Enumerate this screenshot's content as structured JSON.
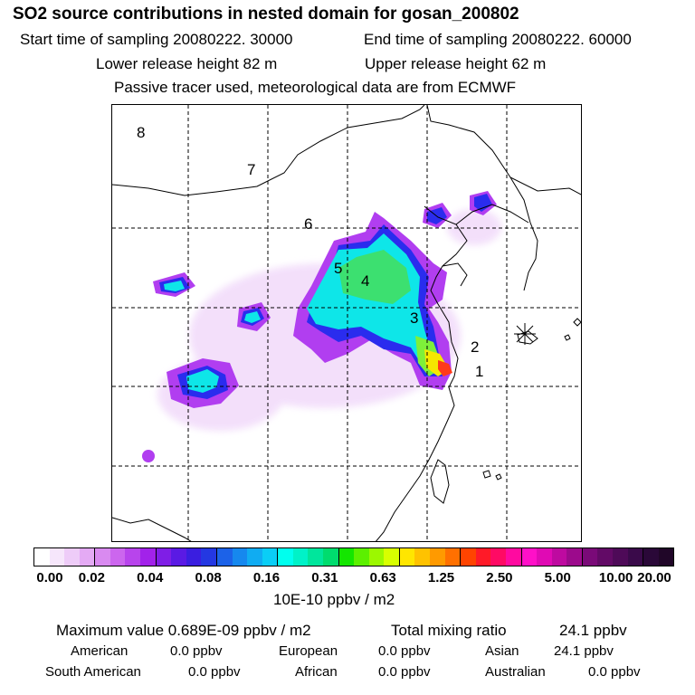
{
  "header": {
    "title": "SO2 source contributions in nested domain for gosan_200802",
    "start_time": "Start time of sampling 20080222. 30000",
    "end_time": "End time of sampling 20080222. 60000",
    "lower_height": "Lower release height   82 m",
    "upper_height": "Upper release height   62 m",
    "tracer_note": "Passive tracer used, meteorological data are from ECMWF"
  },
  "map": {
    "region_labels": [
      "8",
      "7",
      "6",
      "5",
      "4",
      "3",
      "2",
      "1"
    ],
    "receptor_marker": "asterisk-icon",
    "line_color": "#000000"
  },
  "legend": {
    "tick_labels": [
      "0.00",
      "0.02",
      "0.04",
      "0.08",
      "0.16",
      "0.31",
      "0.63",
      "1.25",
      "2.50",
      "5.00",
      "10.00",
      "20.00"
    ],
    "unit": "10E-10 ppbv / m2",
    "colors": [
      "#ffffff",
      "#f6e6fb",
      "#eeccf8",
      "#e4aaf4",
      "#d98af0",
      "#cc66ee",
      "#b844ec",
      "#a222ea",
      "#7f1ee6",
      "#5a1ae4",
      "#3a1ee0",
      "#2438e2",
      "#1c62e8",
      "#1688ee",
      "#10acf2",
      "#0acef6",
      "#00ffee",
      "#00f2c8",
      "#00e69c",
      "#00dc6e",
      "#14e600",
      "#5cf000",
      "#9cf800",
      "#d8ff00",
      "#ffe600",
      "#ffc200",
      "#ff9a00",
      "#ff7000",
      "#ff4400",
      "#ff1a28",
      "#ff0a64",
      "#ff0aa0",
      "#ff10c8",
      "#e00ab4",
      "#be0aa0",
      "#9c0a8c",
      "#7a0a78",
      "#620a66",
      "#4e0a58",
      "#3a0a4a",
      "#2a0838",
      "#200628"
    ]
  },
  "summary": {
    "max_label": "Maximum value  0.689E-09 ppbv / m2",
    "total_label": "Total mixing ratio",
    "total_value": "24.1 ppbv",
    "regions": [
      {
        "name": "American",
        "value": "0.0 ppbv"
      },
      {
        "name": "European",
        "value": "0.0 ppbv"
      },
      {
        "name": "Asian",
        "value": "24.1 ppbv"
      },
      {
        "name": "South American",
        "value": "0.0 ppbv"
      },
      {
        "name": "African",
        "value": "0.0 ppbv"
      },
      {
        "name": "Australian",
        "value": "0.0 ppbv"
      }
    ]
  }
}
